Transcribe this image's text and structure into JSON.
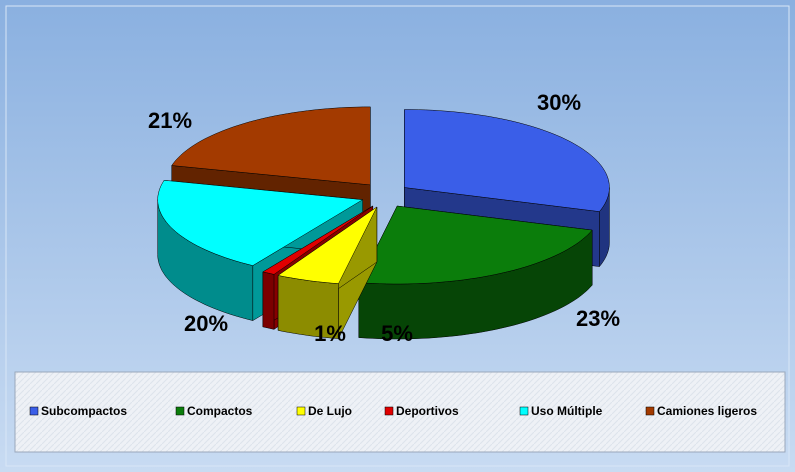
{
  "chart_data": {
    "type": "pie",
    "categories": [
      "Subcompactos",
      "Compactos",
      "De Lujo",
      "Deportivos",
      "Uso Múltiple",
      "Camiones ligeros"
    ],
    "values": [
      30,
      23,
      5,
      1,
      20,
      21
    ],
    "value_labels": [
      "30%",
      "23%",
      "5%",
      "1%",
      "20%",
      "21%"
    ],
    "colors": [
      "#3a5ee8",
      "#0b7d0b",
      "#ffff00",
      "#e00000",
      "#00ffff",
      "#a33a00"
    ],
    "legend": "bottom"
  }
}
